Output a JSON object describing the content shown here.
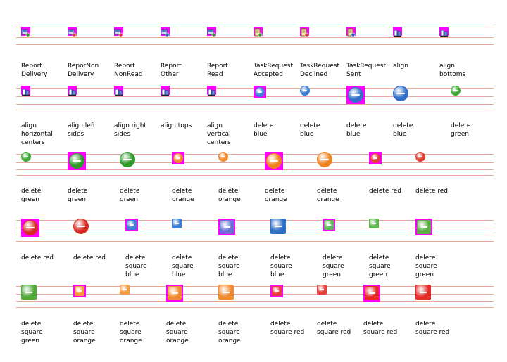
{
  "rows": [
    {
      "items": [
        {
          "label": "Report\nDelivery",
          "icon": "report-delivery-icon",
          "kind": "report",
          "mark": "#3a8a2a"
        },
        {
          "label": "ReporNon\nDelivery",
          "icon": "report-non-delivery-icon",
          "kind": "report",
          "mark": "#d33"
        },
        {
          "label": "Report\nNonRead",
          "icon": "report-nonread-icon",
          "kind": "report",
          "mark": "#d33"
        },
        {
          "label": "Report\nOther",
          "icon": "report-other-icon",
          "kind": "report",
          "mark": "#2a55c8"
        },
        {
          "label": "Report\nRead",
          "icon": "report-read-icon",
          "kind": "report",
          "mark": "#3a8a2a"
        },
        {
          "label": "TaskRequest\nAccepted",
          "icon": "task-request-accepted-icon",
          "kind": "task",
          "mark": "#3a8a2a"
        },
        {
          "label": "TaskRequest\nDeclined",
          "icon": "task-request-declined-icon",
          "kind": "task",
          "mark": "#d33"
        },
        {
          "label": "TaskRequest\nSent",
          "icon": "task-request-sent-icon",
          "kind": "task",
          "mark": "#2a55c8"
        },
        {
          "label": "align",
          "icon": "align-icon",
          "kind": "align",
          "mark": "#2a55c8"
        },
        {
          "label": "align\nbottoms",
          "icon": "align-bottoms-icon",
          "kind": "align",
          "mark": "#2a55c8"
        }
      ]
    },
    {
      "items": [
        {
          "label": "align\nhorizontal\ncenters",
          "icon": "align-horizontal-centers-icon",
          "kind": "align",
          "mark": "#2a55c8"
        },
        {
          "label": "align left\nsides",
          "icon": "align-left-sides-icon",
          "kind": "align",
          "mark": "#2a55c8"
        },
        {
          "label": "align right\nsides",
          "icon": "align-right-sides-icon",
          "kind": "align",
          "mark": "#2a55c8"
        },
        {
          "label": "align tops",
          "icon": "align-tops-icon",
          "kind": "align",
          "mark": "#2a55c8"
        },
        {
          "label": "align\nvertical\ncenters",
          "icon": "align-vertical-centers-icon",
          "kind": "align",
          "mark": "#2a55c8"
        },
        {
          "label": "delete\nblue",
          "icon": "delete-blue-icon",
          "kind": "circle",
          "color": "#3d7fd4",
          "size": 14,
          "magenta": true
        },
        {
          "label": "delete\nblue",
          "icon": "delete-blue-icon",
          "kind": "circle",
          "color": "#3d7fd4",
          "size": 14,
          "magenta": false
        },
        {
          "label": "delete\nblue",
          "icon": "delete-blue-icon",
          "kind": "circle",
          "color": "#2f6fc9",
          "size": 22,
          "magenta": true
        },
        {
          "label": "delete\nblue",
          "icon": "delete-blue-icon",
          "kind": "circle",
          "color": "#2f6fc9",
          "size": 22,
          "magenta": false
        },
        {
          "label": "delete\ngreen",
          "icon": "delete-green-icon",
          "kind": "circle",
          "color": "#3faa35",
          "size": 14,
          "magenta": false
        }
      ]
    },
    {
      "items": [
        {
          "label": "delete\ngreen",
          "icon": "delete-green-icon",
          "kind": "circle",
          "color": "#3faa35",
          "size": 14,
          "magenta": false
        },
        {
          "label": "delete\ngreen",
          "icon": "delete-green-icon",
          "kind": "circle",
          "color": "#2f9a2a",
          "size": 22,
          "magenta": true
        },
        {
          "label": "delete\ngreen",
          "icon": "delete-green-icon",
          "kind": "circle",
          "color": "#2f9a2a",
          "size": 22,
          "magenta": false
        },
        {
          "label": "delete\norange",
          "icon": "delete-orange-icon",
          "kind": "circle",
          "color": "#f08a2a",
          "size": 14,
          "magenta": true
        },
        {
          "label": "delete\norange",
          "icon": "delete-orange-icon",
          "kind": "circle",
          "color": "#f08a2a",
          "size": 14,
          "magenta": false
        },
        {
          "label": "delete\norange",
          "icon": "delete-orange-icon",
          "kind": "circle",
          "color": "#ee8420",
          "size": 22,
          "magenta": true
        },
        {
          "label": "delete\norange",
          "icon": "delete-orange-icon",
          "kind": "circle",
          "color": "#ee8420",
          "size": 22,
          "magenta": false
        },
        {
          "label": "delete red",
          "icon": "delete-red-icon",
          "kind": "circle",
          "color": "#e04030",
          "size": 14,
          "magenta": true
        },
        {
          "label": "delete red",
          "icon": "delete-red-icon",
          "kind": "circle",
          "color": "#e04030",
          "size": 14,
          "magenta": false
        }
      ]
    },
    {
      "items": [
        {
          "label": "delete red",
          "icon": "delete-red-icon",
          "kind": "circle",
          "color": "#d82a20",
          "size": 22,
          "magenta": true
        },
        {
          "label": "delete red",
          "icon": "delete-red-icon",
          "kind": "circle",
          "color": "#d82a20",
          "size": 22,
          "magenta": false
        },
        {
          "label": "delete\nsquare\nblue",
          "icon": "delete-square-blue-icon",
          "kind": "square",
          "color": "#3d7fd4",
          "size": 14,
          "magenta": true
        },
        {
          "label": "delete\nsquare\nblue",
          "icon": "delete-square-blue-icon",
          "kind": "square",
          "color": "#3d7fd4",
          "size": 14,
          "magenta": false
        },
        {
          "label": "delete\nsquare\nblue",
          "icon": "delete-square-blue-icon",
          "kind": "square",
          "color": "#6a70d8",
          "size": 20,
          "magenta": true
        },
        {
          "label": "delete\nsquare\nblue",
          "icon": "delete-square-blue-icon",
          "kind": "square",
          "color": "#2f6fc9",
          "size": 22,
          "magenta": false
        },
        {
          "label": "delete\nsquare\ngreen",
          "icon": "delete-square-green-icon",
          "kind": "square",
          "color": "#5fb850",
          "size": 14,
          "magenta": true
        },
        {
          "label": "delete\nsquare\ngreen",
          "icon": "delete-square-green-icon",
          "kind": "square",
          "color": "#5fb850",
          "size": 14,
          "magenta": false
        },
        {
          "label": "delete\nsquare\ngreen",
          "icon": "delete-square-green-icon",
          "kind": "square",
          "color": "#59b045",
          "size": 20,
          "magenta": true
        }
      ]
    },
    {
      "items": [
        {
          "label": "delete\nsquare\ngreen",
          "icon": "delete-square-green-icon",
          "kind": "square",
          "color": "#4fa838",
          "size": 22,
          "magenta": false
        },
        {
          "label": "delete\nsquare\norange",
          "icon": "delete-square-orange-icon",
          "kind": "square",
          "color": "#f59a40",
          "size": 14,
          "magenta": true
        },
        {
          "label": "delete\nsquare\norange",
          "icon": "delete-square-orange-icon",
          "kind": "square",
          "color": "#f59a40",
          "size": 14,
          "magenta": false
        },
        {
          "label": "delete\nsquare\norange",
          "icon": "delete-square-orange-icon",
          "kind": "square",
          "color": "#f08a30",
          "size": 20,
          "magenta": true
        },
        {
          "label": "delete\nsquare\norange",
          "icon": "delete-square-orange-icon",
          "kind": "square",
          "color": "#f08a30",
          "size": 22,
          "magenta": false
        },
        {
          "label": "delete\nsquare red",
          "icon": "delete-square-red-icon",
          "kind": "square",
          "color": "#e84040",
          "size": 14,
          "magenta": true
        },
        {
          "label": "delete\nsquare red",
          "icon": "delete-square-red-icon",
          "kind": "square",
          "color": "#e84040",
          "size": 14,
          "magenta": false
        },
        {
          "label": "delete\nsquare red",
          "icon": "delete-square-red-icon",
          "kind": "square",
          "color": "#e62a2a",
          "size": 20,
          "magenta": true
        },
        {
          "label": "delete\nsquare red",
          "icon": "delete-square-red-icon",
          "kind": "square",
          "color": "#e62a2a",
          "size": 22,
          "magenta": false
        }
      ]
    }
  ]
}
